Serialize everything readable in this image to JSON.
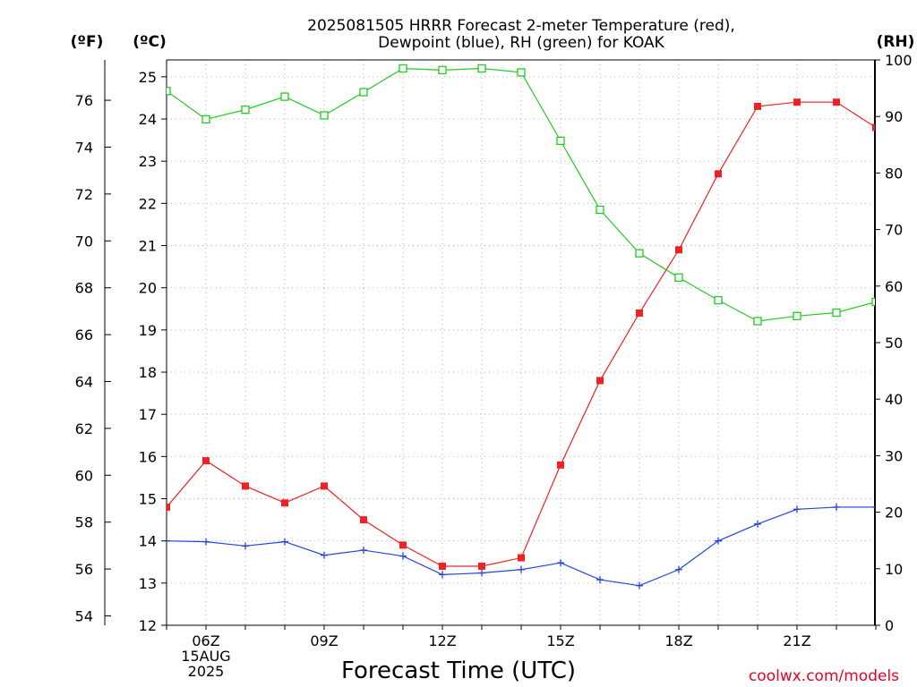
{
  "chart_data": {
    "type": "line",
    "title": [
      "2025081505 HRRR Forecast 2-meter Temperature (red),",
      "Dewpoint (blue), RH (green) for KOAK"
    ],
    "xlabel": "Forecast Time (UTC)",
    "units": {
      "fahrenheit": "(ºF)",
      "celsius": "(ºC)",
      "rh": "(RH)"
    },
    "credit": "coolwx.com/models",
    "x": [
      "05Z",
      "06Z",
      "07Z",
      "08Z",
      "09Z",
      "10Z",
      "11Z",
      "12Z",
      "13Z",
      "14Z",
      "15Z",
      "16Z",
      "17Z",
      "18Z",
      "19Z",
      "20Z",
      "21Z",
      "22Z",
      "23Z"
    ],
    "x_tick_labels": [
      {
        "x": "06Z",
        "lines": [
          "06Z",
          "15AUG",
          "2025"
        ]
      },
      {
        "x": "09Z",
        "lines": [
          "09Z"
        ]
      },
      {
        "x": "12Z",
        "lines": [
          "12Z"
        ]
      },
      {
        "x": "15Z",
        "lines": [
          "15Z"
        ]
      },
      {
        "x": "18Z",
        "lines": [
          "18Z"
        ]
      },
      {
        "x": "21Z",
        "lines": [
          "21Z"
        ]
      }
    ],
    "y_celsius": {
      "ylim": [
        12,
        25.4
      ],
      "ticks": [
        12,
        13,
        14,
        15,
        16,
        17,
        18,
        19,
        20,
        21,
        22,
        23,
        24,
        25
      ]
    },
    "y_fahrenheit": {
      "ticks": [
        54,
        56,
        58,
        60,
        62,
        64,
        66,
        68,
        70,
        72,
        74,
        76
      ]
    },
    "y_rh": {
      "ylim": [
        0,
        100
      ],
      "ticks": [
        0,
        10,
        20,
        30,
        40,
        50,
        60,
        70,
        80,
        90,
        100
      ]
    },
    "grid": true,
    "series": [
      {
        "name": "Temperature (red)",
        "axis": "celsius",
        "color": "#ee2222",
        "marker": "filled-square",
        "values": [
          14.8,
          15.9,
          15.3,
          14.9,
          15.3,
          14.5,
          13.9,
          13.4,
          13.4,
          13.6,
          15.8,
          17.8,
          19.4,
          20.9,
          22.7,
          24.3,
          24.4,
          24.4,
          23.8
        ]
      },
      {
        "name": "Dewpoint (blue)",
        "axis": "celsius",
        "color": "#2244dd",
        "marker": "plus",
        "values": [
          14.0,
          13.98,
          13.88,
          13.98,
          13.66,
          13.78,
          13.64,
          13.2,
          13.24,
          13.32,
          13.48,
          13.08,
          12.94,
          13.32,
          14.0,
          14.4,
          14.75,
          14.8,
          14.8
        ]
      },
      {
        "name": "RH (green)",
        "axis": "rh",
        "color": "#22cc22",
        "marker": "open-square",
        "values": [
          94.5,
          89.5,
          91.2,
          93.5,
          90.2,
          94.3,
          98.5,
          98.2,
          98.5,
          97.8,
          85.7,
          73.5,
          65.8,
          61.5,
          57.5,
          53.8,
          54.7,
          55.3,
          57.2
        ]
      }
    ]
  }
}
